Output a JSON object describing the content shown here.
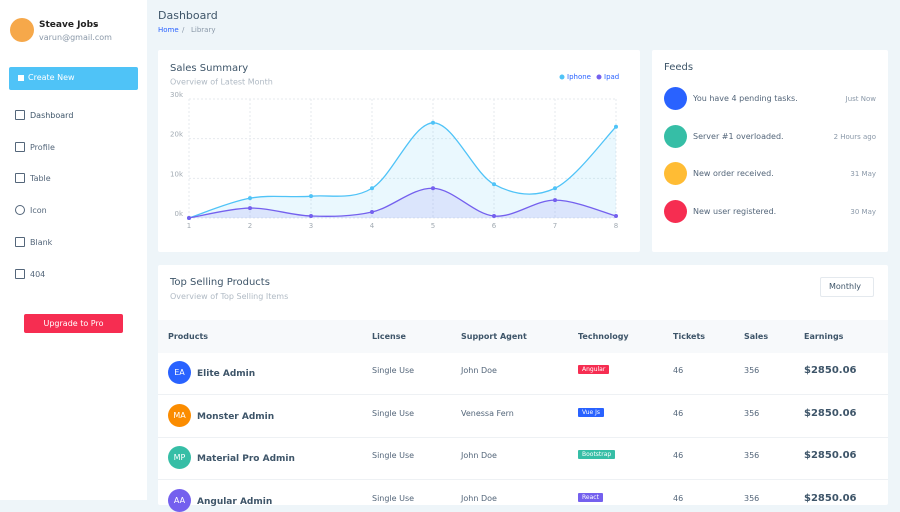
{
  "sidebar": {
    "user": {
      "name": "Steave Jobs",
      "email": "varun@gmail.com"
    },
    "create_button": "Create New",
    "nav": [
      "Dashboard",
      "Profile",
      "Table",
      "Icon",
      "Blank",
      "404"
    ],
    "upgrade_button": "Upgrade to Pro"
  },
  "header": {
    "title": "Dashboard",
    "breadcrumb": [
      "Home",
      "Library"
    ]
  },
  "chart_data": {
    "type": "line",
    "title": "Sales Summary",
    "subtitle": "Overview of Latest Month",
    "categories": [
      "1",
      "2",
      "3",
      "4",
      "5",
      "6",
      "7",
      "8"
    ],
    "series": [
      {
        "name": "Iphone",
        "color": "#4fc3f7",
        "values": [
          0,
          5000,
          5500,
          7500,
          24000,
          8500,
          7500,
          23000
        ]
      },
      {
        "name": "Ipad",
        "color": "#7460ee",
        "values": [
          0,
          2500,
          500,
          1500,
          7500,
          500,
          4500,
          500
        ]
      }
    ],
    "ylim": [
      0,
      30000
    ],
    "yticks": [
      {
        "value": 0,
        "label": "0k"
      },
      {
        "value": 10000,
        "label": "10k"
      },
      {
        "value": 20000,
        "label": "20k"
      },
      {
        "value": 30000,
        "label": "30k"
      }
    ],
    "grid": true,
    "legend": "top-right"
  },
  "feeds": {
    "title": "Feeds",
    "items": [
      {
        "text": "You have 4 pending tasks.",
        "time": "Just Now",
        "color": "#2962ff"
      },
      {
        "text": "Server #1 overloaded.",
        "time": "2 Hours ago",
        "color": "#36bea6"
      },
      {
        "text": "New order received.",
        "time": "31 May",
        "color": "#ffbc34"
      },
      {
        "text": "New user registered.",
        "time": "30 May",
        "color": "#f62d51"
      }
    ]
  },
  "table": {
    "title": "Top Selling Products",
    "subtitle": "Overview of Top Selling Items",
    "filter": "Monthly",
    "columns": [
      "Products",
      "License",
      "Support Agent",
      "Technology",
      "Tickets",
      "Sales",
      "Earnings"
    ],
    "rows": [
      {
        "initials": "EA",
        "product": "Elite Admin",
        "license": "Single Use",
        "agent": "John Doe",
        "technology": "Angular",
        "tickets": 46,
        "sales": 356,
        "earnings": "$2850.06",
        "avatar_color": "#2962ff",
        "tech_color": "#f62d51"
      },
      {
        "initials": "MA",
        "product": "Monster Admin",
        "license": "Single Use",
        "agent": "Venessa Fern",
        "technology": "Vue Js",
        "tickets": 46,
        "sales": 356,
        "earnings": "$2850.06",
        "avatar_color": "#fb8c00",
        "tech_color": "#2962ff"
      },
      {
        "initials": "MP",
        "product": "Material Pro Admin",
        "license": "Single Use",
        "agent": "John Doe",
        "technology": "Bootstrap",
        "tickets": 46,
        "sales": 356,
        "earnings": "$2850.06",
        "avatar_color": "#36bea6",
        "tech_color": "#36bea6"
      },
      {
        "initials": "AA",
        "product": "Angular Admin",
        "license": "Single Use",
        "agent": "John Doe",
        "technology": "React",
        "tickets": 46,
        "sales": 356,
        "earnings": "$2850.06",
        "avatar_color": "#7460ee",
        "tech_color": "#7460ee"
      }
    ]
  }
}
